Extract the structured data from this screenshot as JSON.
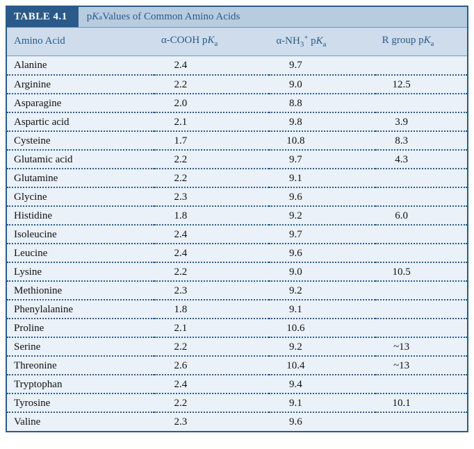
{
  "title_tag": "TABLE 4.1",
  "title_html": "p<i>K</i><sub>a</sub> Values of Common Amino Acids",
  "columns": {
    "aa": "Amino Acid",
    "cooh_html": "&alpha;-COOH p<i>K</i><sub>a</sub>",
    "nh3_html": "&alpha;-NH<sub>3</sub><sup>+</sup> p<i>K</i><sub>a</sub>",
    "r_html": "R group p<i>K</i><sub>a</sub>"
  },
  "rows": [
    {
      "aa": "Alanine",
      "cooh": "2.4",
      "nh3": "9.7",
      "r": ""
    },
    {
      "aa": "Arginine",
      "cooh": "2.2",
      "nh3": "9.0",
      "r": "12.5"
    },
    {
      "aa": "Asparagine",
      "cooh": "2.0",
      "nh3": "8.8",
      "r": ""
    },
    {
      "aa": "Aspartic acid",
      "cooh": "2.1",
      "nh3": "9.8",
      "r": "3.9"
    },
    {
      "aa": "Cysteine",
      "cooh": "1.7",
      "nh3": "10.8",
      "r": "8.3"
    },
    {
      "aa": "Glutamic acid",
      "cooh": "2.2",
      "nh3": "9.7",
      "r": "4.3"
    },
    {
      "aa": "Glutamine",
      "cooh": "2.2",
      "nh3": "9.1",
      "r": ""
    },
    {
      "aa": "Glycine",
      "cooh": "2.3",
      "nh3": "9.6",
      "r": ""
    },
    {
      "aa": "Histidine",
      "cooh": "1.8",
      "nh3": "9.2",
      "r": "6.0"
    },
    {
      "aa": "Isoleucine",
      "cooh": "2.4",
      "nh3": "9.7",
      "r": ""
    },
    {
      "aa": "Leucine",
      "cooh": "2.4",
      "nh3": "9.6",
      "r": ""
    },
    {
      "aa": "Lysine",
      "cooh": "2.2",
      "nh3": "9.0",
      "r": "10.5"
    },
    {
      "aa": "Methionine",
      "cooh": "2.3",
      "nh3": "9.2",
      "r": ""
    },
    {
      "aa": "Phenylalanine",
      "cooh": "1.8",
      "nh3": "9.1",
      "r": ""
    },
    {
      "aa": "Proline",
      "cooh": "2.1",
      "nh3": "10.6",
      "r": ""
    },
    {
      "aa": "Serine",
      "cooh": "2.2",
      "nh3": "9.2",
      "r": "~13"
    },
    {
      "aa": "Threonine",
      "cooh": "2.6",
      "nh3": "10.4",
      "r": "~13"
    },
    {
      "aa": "Tryptophan",
      "cooh": "2.4",
      "nh3": "9.4",
      "r": ""
    },
    {
      "aa": "Tyrosine",
      "cooh": "2.2",
      "nh3": "9.1",
      "r": "10.1"
    },
    {
      "aa": "Valine",
      "cooh": "2.3",
      "nh3": "9.6",
      "r": ""
    }
  ],
  "colors": {
    "border": "#2a5a8a",
    "title_bg": "#2a5a8a",
    "title_fg": "#ffffff",
    "header_bg": "#cfdceb",
    "row_bg": "#eaf1f8",
    "dotted": "#2a5a8a"
  }
}
